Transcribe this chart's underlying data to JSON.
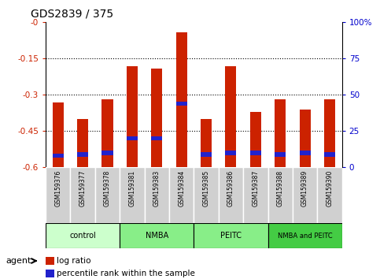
{
  "title": "GDS2839 / 375",
  "samples": [
    "GSM159376",
    "GSM159377",
    "GSM159378",
    "GSM159381",
    "GSM159383",
    "GSM159384",
    "GSM159385",
    "GSM159386",
    "GSM159387",
    "GSM159388",
    "GSM159389",
    "GSM159390"
  ],
  "log_ratio": [
    -0.33,
    -0.4,
    -0.32,
    -0.18,
    -0.19,
    -0.04,
    -0.4,
    -0.18,
    -0.37,
    -0.32,
    -0.36,
    -0.32
  ],
  "percentile_rank_pct": [
    8,
    9,
    10,
    20,
    20,
    44,
    9,
    10,
    10,
    9,
    10,
    9
  ],
  "groups": [
    {
      "label": "control",
      "indices": [
        0,
        1,
        2
      ],
      "color": "#ccffcc"
    },
    {
      "label": "NMBA",
      "indices": [
        3,
        4,
        5
      ],
      "color": "#88ee88"
    },
    {
      "label": "PEITC",
      "indices": [
        6,
        7,
        8
      ],
      "color": "#88ee88"
    },
    {
      "label": "NMBA and PEITC",
      "indices": [
        9,
        10,
        11
      ],
      "color": "#44cc44"
    }
  ],
  "ylim_left": [
    -0.6,
    0.0
  ],
  "ylim_right": [
    0,
    100
  ],
  "yticks_left": [
    0.0,
    -0.15,
    -0.3,
    -0.45,
    -0.6
  ],
  "ytick_labels_left": [
    "-0",
    "-0.15",
    "-0.3",
    "-0.45",
    "-0.6"
  ],
  "yticks_right": [
    100,
    75,
    50,
    25,
    0
  ],
  "ytick_labels_right": [
    "100%",
    "75",
    "50",
    "25",
    "0"
  ],
  "bar_color_red": "#cc2200",
  "bar_color_blue": "#2222cc",
  "bar_width": 0.45,
  "axis_label_color_left": "#cc2200",
  "axis_label_color_right": "#0000cc",
  "bg_plot": "#ffffff",
  "sample_box_color": "#d0d0d0",
  "group_colors": [
    "#ccffcc",
    "#88ee88",
    "#88ee88",
    "#44cc44"
  ],
  "group_labels": [
    "control",
    "NMBA",
    "PEITC",
    "NMBA and PEITC"
  ]
}
